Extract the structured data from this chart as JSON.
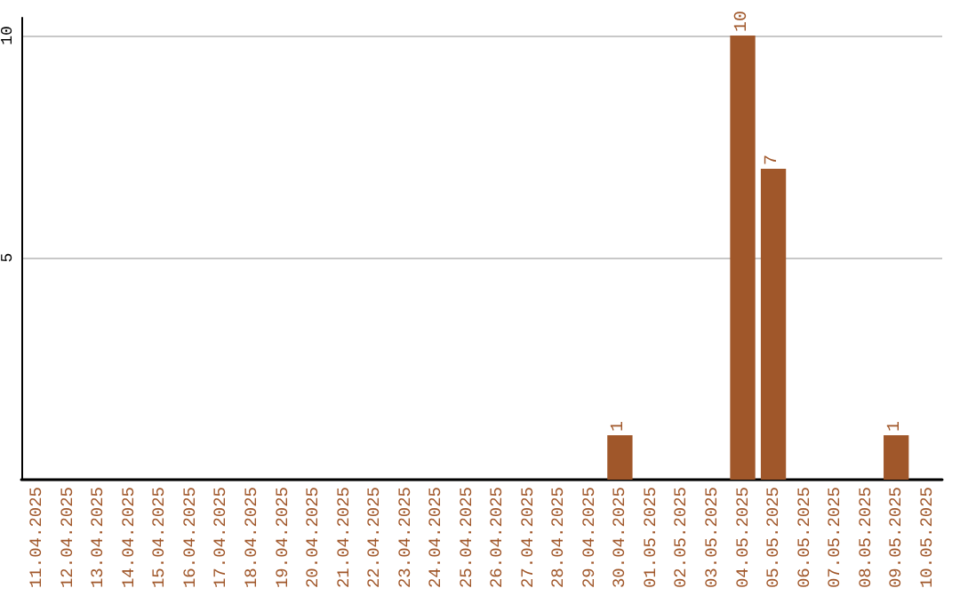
{
  "chart_data": {
    "type": "bar",
    "categories": [
      "11.04.2025",
      "12.04.2025",
      "13.04.2025",
      "14.04.2025",
      "15.04.2025",
      "16.04.2025",
      "17.04.2025",
      "18.04.2025",
      "19.04.2025",
      "20.04.2025",
      "21.04.2025",
      "22.04.2025",
      "23.04.2025",
      "24.04.2025",
      "25.04.2025",
      "26.04.2025",
      "27.04.2025",
      "28.04.2025",
      "29.04.2025",
      "30.04.2025",
      "01.05.2025",
      "02.05.2025",
      "03.05.2025",
      "04.05.2025",
      "05.05.2025",
      "06.05.2025",
      "07.05.2025",
      "08.05.2025",
      "09.05.2025",
      "10.05.2025"
    ],
    "values": [
      0,
      0,
      0,
      0,
      0,
      0,
      0,
      0,
      0,
      0,
      0,
      0,
      0,
      0,
      0,
      0,
      0,
      0,
      0,
      1,
      0,
      0,
      0,
      10,
      7,
      0,
      0,
      0,
      1,
      0
    ],
    "value_labels": [
      null,
      null,
      null,
      null,
      null,
      null,
      null,
      null,
      null,
      null,
      null,
      null,
      null,
      null,
      null,
      null,
      null,
      null,
      null,
      "1",
      null,
      null,
      null,
      "10",
      "7",
      null,
      null,
      null,
      "1",
      null
    ],
    "color": "#a0572a",
    "ylim": [
      0,
      10.4
    ],
    "yticks": [
      {
        "value": 0,
        "label": null
      },
      5,
      10
    ],
    "grid": "y"
  }
}
